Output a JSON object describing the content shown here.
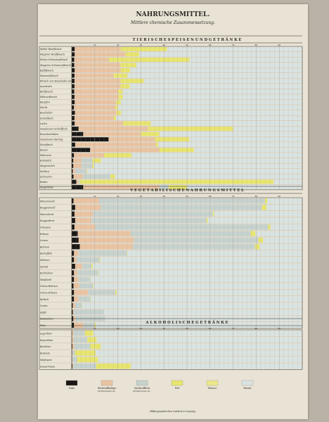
{
  "page": {
    "title": "NAHRUNGSMITTEL.",
    "subtitle": "Mittlere chemische Zusammensetzung.",
    "publisher": "Bibliographisches Institut in Leipzig."
  },
  "colors": {
    "salze": "#1a1816",
    "stickstoff": "#eac4a2",
    "kohlehydrate": "#c6d2ce",
    "fett": "#e7e56e",
    "wasser_extract": "#ece88a",
    "wasser": "#d9e3e1",
    "grid": "#a8a49c",
    "text": "#2c2924"
  },
  "chart_data": {
    "type": "bar",
    "orientation": "horizontal",
    "stacked": true,
    "title": "NAHRUNGSMITTEL.",
    "subtitle": "Mittlere chemische Zusammensetzung.",
    "xlim": [
      0,
      100
    ],
    "x_ticks": [
      10,
      20,
      30,
      40,
      50,
      60,
      70,
      80,
      90
    ],
    "grid": true,
    "legend": {
      "position": "bottom",
      "items": [
        {
          "key": "salze",
          "label": "Salze",
          "sublabel": ""
        },
        {
          "key": "stickstoff",
          "label": "Stickstoffhaltige",
          "sublabel": "Verbindungen etc."
        },
        {
          "key": "kohlehydrate",
          "label": "Stickstofffreie",
          "sublabel": "Kohlehydrate etc."
        },
        {
          "key": "fett",
          "label": "Fett",
          "sublabel": ""
        },
        {
          "key": "wasser_extract",
          "label": "Extract",
          "sublabel": ""
        },
        {
          "key": "wasser",
          "label": "Wasser",
          "sublabel": ""
        }
      ]
    },
    "sections": [
      {
        "title": "T I E R I S C H E   S P E I S E N   U N D   G E T R Ä N K E",
        "rows": [
          {
            "label": "Mittel Rindfleisch",
            "values": [
              1.3,
              20,
              0,
              20,
              58.7
            ]
          },
          {
            "label": "Magerer Rindfleisch",
            "values": [
              1.3,
              22,
              0,
              6,
              70.7
            ]
          },
          {
            "label": "Fettes Schweinefleisch",
            "values": [
              1.1,
              15,
              0,
              35,
              48.9
            ]
          },
          {
            "label": "Mageres Schweinefleisch",
            "values": [
              1.1,
              20,
              0,
              7,
              71.9
            ]
          },
          {
            "label": "Kalbfleisch",
            "values": [
              1.3,
              20,
              0,
              4,
              74.7
            ]
          },
          {
            "label": "Hammelfleisch",
            "values": [
              1.2,
              17,
              0,
              6,
              75.8
            ]
          },
          {
            "label": "Fleisch von Haushuhn etc",
            "values": [
              1.2,
              20,
              0,
              10,
              68.8
            ]
          },
          {
            "label": "Auerhahn",
            "values": [
              1.2,
              20,
              0,
              4,
              74.8
            ]
          },
          {
            "label": "Rehfleisch",
            "values": [
              1.1,
              19,
              0,
              2,
              77.9
            ]
          },
          {
            "label": "Hühnerfleisch",
            "values": [
              1.2,
              19,
              0,
              2,
              77.8
            ]
          },
          {
            "label": "Karpfen",
            "values": [
              1.3,
              18,
              0,
              2,
              78.7
            ]
          },
          {
            "label": "Hecht",
            "values": [
              1.0,
              18,
              0,
              1,
              80
            ]
          },
          {
            "label": "Kochleber",
            "values": [
              1.4,
              18,
              0,
              2,
              78.6
            ]
          },
          {
            "label": "Schellfisch",
            "values": [
              1.2,
              17,
              0,
              1,
              80.8
            ]
          },
          {
            "label": "Lachs",
            "values": [
              1.3,
              21,
              0,
              12,
              65.7
            ]
          },
          {
            "label": "Gesalzener Schellfisch",
            "values": [
              3,
              30,
              0,
              37,
              30
            ]
          },
          {
            "label": "Rauchschinken",
            "values": [
              5,
              25,
              0,
              8,
              62
            ]
          },
          {
            "label": "Gesalzener Hering",
            "values": [
              16,
              20,
              0,
              15,
              49
            ]
          },
          {
            "label": "Stockfisch",
            "values": [
              1.5,
              35,
              0,
              1,
              62.5
            ]
          },
          {
            "label": "Kaviar",
            "values": [
              8,
              30,
              0,
              15,
              47
            ]
          },
          {
            "label": "Hühnerei",
            "values": [
              1,
              13,
              0,
              12,
              74
            ]
          },
          {
            "label": "Kuhmilch",
            "values": [
              0.7,
              3.5,
              4.8,
              3.7,
              87.3
            ]
          },
          {
            "label": "Magermilch",
            "values": [
              0.7,
              3.5,
              4.8,
              0.7,
              90.3
            ]
          },
          {
            "label": "Molken",
            "values": [
              0.5,
              1,
              5,
              0.3,
              93.2
            ]
          },
          {
            "label": "Schmarre",
            "values": [
              0.8,
              4,
              12,
              2,
              81.2
            ]
          },
          {
            "label": "Butter",
            "values": [
              2,
              1,
              0.5,
              84,
              12.5
            ]
          },
          {
            "label": "Magerkäse",
            "values": [
              5,
              33,
              4,
              8,
              50
            ]
          }
        ]
      },
      {
        "title": "V E G E T A B I L I S C H E   N A H R U N G S M I T T E L",
        "rows": [
          {
            "label": "Weizenmehl",
            "values": [
              0.8,
              11,
              72,
              1,
              15.2
            ]
          },
          {
            "label": "Roggenmehl",
            "values": [
              1.5,
              11,
              70,
              2,
              15.5
            ]
          },
          {
            "label": "Weizenbrot",
            "values": [
              1.2,
              8,
              52,
              0.5,
              38.3
            ]
          },
          {
            "label": "Roggenbrot",
            "values": [
              1.5,
              7,
              50,
              0.5,
              41
            ]
          },
          {
            "label": "Graupen",
            "values": [
              1.2,
              9,
              75,
              1,
              13.8
            ]
          },
          {
            "label": "Erbsen",
            "values": [
              2.6,
              23,
              52,
              2,
              20.4
            ]
          },
          {
            "label": "Linsen",
            "values": [
              3,
              24,
              54,
              2,
              17
            ]
          },
          {
            "label": "Bohnen",
            "values": [
              3.5,
              23,
              53,
              2,
              18.5
            ]
          },
          {
            "label": "Kartoffeln",
            "values": [
              1,
              2,
              21,
              0.2,
              75.8
            ]
          },
          {
            "label": "Möhren",
            "values": [
              1,
              1,
              10,
              0.3,
              87.7
            ]
          },
          {
            "label": "Spinat",
            "values": [
              1.5,
              3,
              4,
              0.5,
              91
            ]
          },
          {
            "label": "Kohlrüben",
            "values": [
              1,
              1.5,
              9,
              0.2,
              88.3
            ]
          },
          {
            "label": "Weißkohl",
            "values": [
              1,
              2,
              5,
              0.2,
              91.8
            ]
          },
          {
            "label": "Grüne Bohnen",
            "values": [
              0.8,
              2.5,
              6,
              0.2,
              90.5
            ]
          },
          {
            "label": "Grüne Erbsen",
            "values": [
              1,
              6,
              12,
              0.5,
              80.5
            ]
          },
          {
            "label": "Rettich",
            "values": [
              1,
              2,
              5,
              0.2,
              91.8
            ]
          },
          {
            "label": "Gurke",
            "values": [
              0.5,
              1,
              3,
              0.1,
              95.4
            ]
          },
          {
            "label": "Äpfel",
            "values": [
              0.5,
              0.4,
              13,
              0,
              86.1
            ]
          },
          {
            "label": "Zwetschen",
            "values": [
              0.7,
              0.8,
              13,
              0,
              85.5
            ]
          },
          {
            "label": "Pilze",
            "values": [
              1,
              4,
              5,
              0.5,
              89.5
            ]
          }
        ]
      },
      {
        "title": "A L K O H O L I S C H E   G E T R Ä N K E",
        "rows": [
          {
            "label": "Lagerbier",
            "values": [
              0.2,
              0.5,
              5,
              3.7,
              90.6
            ]
          },
          {
            "label": "Exportbier",
            "values": [
              0.2,
              0.6,
              6,
              4,
              89.2
            ]
          },
          {
            "label": "Bockbier",
            "values": [
              0.3,
              0.8,
              7,
              4.5,
              87.4
            ]
          },
          {
            "label": "Rotwein",
            "values": [
              0.2,
              0.2,
              1,
              9,
              89.6
            ]
          },
          {
            "label": "Weißwein",
            "values": [
              0.2,
              0.2,
              2,
              9,
              88.6
            ]
          },
          {
            "label": "Dessertwein",
            "values": [
              0.3,
              0.3,
              10,
              15,
              74.4
            ]
          }
        ]
      }
    ]
  }
}
